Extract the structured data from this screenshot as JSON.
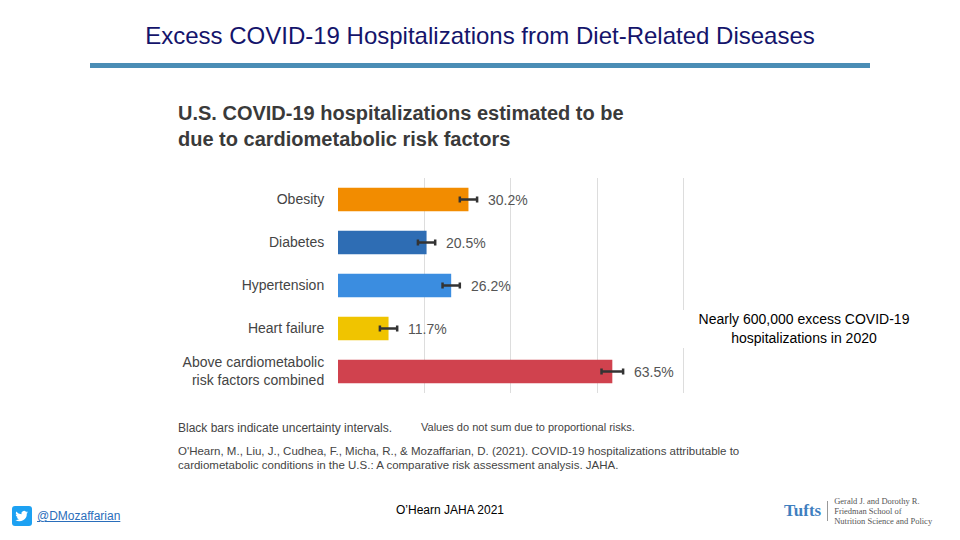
{
  "slide": {
    "title": "Excess COVID-19 Hospitalizations from Diet-Related Diseases",
    "footer": {
      "handle": "@DMozaffarian",
      "center": "O’Hearn JAHA 2021",
      "logo": "Tufts",
      "logo_text": [
        "Gerald J. and Dorothy R.",
        "Friedman School of",
        "Nutrition Science and Policy"
      ]
    }
  },
  "chart_data": {
    "type": "bar",
    "orientation": "horizontal",
    "title": "U.S. COVID-19 hospitalizations estimated to be due to cardiometabolic risk factors",
    "categories": [
      "Obesity",
      "Diabetes",
      "Hypertension",
      "Heart failure",
      "Above cardiometabolic risk factors combined"
    ],
    "values": [
      30.2,
      20.5,
      26.2,
      11.7,
      63.5
    ],
    "value_labels": [
      "30.2%",
      "20.5%",
      "26.2%",
      "11.7%",
      "63.5%"
    ],
    "errors": [
      2,
      2,
      2,
      2,
      2.5
    ],
    "colors": [
      "#f28c00",
      "#2e6db4",
      "#3b8de0",
      "#f0c400",
      "#d0424e"
    ],
    "data_labels": true,
    "xlim": [
      0,
      100
    ],
    "xticks": [
      0,
      20,
      40,
      60,
      80,
      100
    ],
    "grid": true,
    "tick_labels": "y",
    "annotations": [
      "Nearly 600,000 excess COVID-19 hospitalizations in 2020"
    ],
    "notes": [
      "Black bars indicate uncertainty intervals.",
      "Values do not sum due to proportional risks."
    ],
    "source": "O'Hearn, M., Liu, J., Cudhea, F., Micha, R., & Mozaffarian, D. (2021). COVID-19 hospitalizations attributable to cardiometabolic conditions in the U.S.: A comparative risk assessment analysis. JAHA."
  }
}
